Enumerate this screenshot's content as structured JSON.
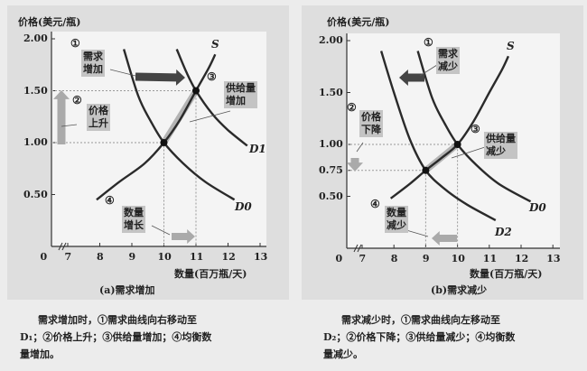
{
  "chart_data": [
    {
      "type": "line",
      "caption": "(a)需求增加",
      "ylabel": "价格(美元/瓶)",
      "xlabel": "数量(百万瓶/天)",
      "x_ticks": [
        "0",
        "7",
        "8",
        "9",
        "10",
        "11",
        "12",
        "13"
      ],
      "y_ticks": [
        "2.00",
        "1.50",
        "1.00",
        "0.50"
      ],
      "xlim": [
        7,
        13
      ],
      "ylim": [
        0,
        2.0
      ],
      "x_axis_break": true,
      "series": [
        {
          "name": "D0",
          "points": [
            [
              8.75,
              1.9
            ],
            [
              9.2,
              1.45
            ],
            [
              9.6,
              1.2
            ],
            [
              10,
              1.0
            ],
            [
              10.6,
              0.8
            ],
            [
              11.3,
              0.62
            ],
            [
              12.2,
              0.45
            ]
          ]
        },
        {
          "name": "S",
          "points": [
            [
              7.9,
              0.45
            ],
            [
              8.6,
              0.62
            ],
            [
              9.4,
              0.8
            ],
            [
              10,
              1.0
            ],
            [
              10.5,
              1.22
            ],
            [
              11,
              1.5
            ],
            [
              11.4,
              1.72
            ],
            [
              11.6,
              1.85
            ]
          ]
        },
        {
          "name": "D1",
          "points": [
            [
              10.4,
              1.9
            ],
            [
              10.7,
              1.68
            ],
            [
              11,
              1.5
            ],
            [
              11.5,
              1.28
            ],
            [
              12,
              1.12
            ],
            [
              12.6,
              0.97
            ]
          ]
        }
      ],
      "equilibria": [
        [
          10,
          1.0
        ],
        [
          11,
          1.5
        ]
      ],
      "annotations": [
        {
          "num": "①",
          "text": [
            "需求",
            "增加"
          ]
        },
        {
          "num": "②",
          "text": [
            "价格",
            "上升"
          ]
        },
        {
          "num": "③",
          "text": [
            "供给量",
            "增加"
          ]
        },
        {
          "num": "④",
          "text": [
            "数量",
            "增长"
          ]
        }
      ]
    },
    {
      "type": "line",
      "caption": "(b)需求减少",
      "ylabel": "价格(美元/瓶)",
      "xlabel": "数量(百万瓶/天)",
      "x_ticks": [
        "0",
        "7",
        "8",
        "9",
        "10",
        "11",
        "12",
        "13"
      ],
      "y_ticks": [
        "2.00",
        "1.50",
        "1.00",
        "0.75",
        "0.50"
      ],
      "xlim": [
        7,
        13
      ],
      "ylim": [
        0,
        2.0
      ],
      "x_axis_break": true,
      "series": [
        {
          "name": "D0",
          "points": [
            [
              8.75,
              1.9
            ],
            [
              9.2,
              1.45
            ],
            [
              9.6,
              1.2
            ],
            [
              10,
              1.0
            ],
            [
              10.6,
              0.8
            ],
            [
              11.3,
              0.62
            ],
            [
              12.3,
              0.45
            ]
          ]
        },
        {
          "name": "S",
          "points": [
            [
              7.9,
              0.48
            ],
            [
              8.5,
              0.62
            ],
            [
              9,
              0.75
            ],
            [
              9.5,
              0.87
            ],
            [
              10,
              1.0
            ],
            [
              10.5,
              1.22
            ],
            [
              11,
              1.5
            ],
            [
              11.4,
              1.72
            ],
            [
              11.6,
              1.85
            ]
          ]
        },
        {
          "name": "D2",
          "points": [
            [
              7.6,
              1.9
            ],
            [
              8,
              1.5
            ],
            [
              8.5,
              1.05
            ],
            [
              9,
              0.75
            ],
            [
              9.6,
              0.57
            ],
            [
              10.3,
              0.42
            ],
            [
              11.2,
              0.27
            ]
          ]
        }
      ],
      "equilibria": [
        [
          10,
          1.0
        ],
        [
          9,
          0.75
        ]
      ],
      "annotations": [
        {
          "num": "①",
          "text": [
            "需求",
            "减少"
          ]
        },
        {
          "num": "②",
          "text": [
            "价格",
            "下降"
          ]
        },
        {
          "num": "③",
          "text": [
            "供给量",
            "减少"
          ]
        },
        {
          "num": "④",
          "text": [
            "数量",
            "减少"
          ]
        }
      ]
    }
  ],
  "descriptions": [
    {
      "lines": [
        "需求增加时，①需求曲线向右移动至",
        "D₁；②价格上升；③供给量增加；④均衡数",
        "量增加。"
      ]
    },
    {
      "lines": [
        "需求减少时，①需求曲线向左移动至",
        "D₂；②价格下降；③供给量减少；④均衡数",
        "量减少。"
      ]
    }
  ],
  "colors": {
    "curve": "#2a2a2a",
    "arrow": "#444444",
    "shaded": "#9a9a9a",
    "annotation_box": "#c4c4c4"
  }
}
